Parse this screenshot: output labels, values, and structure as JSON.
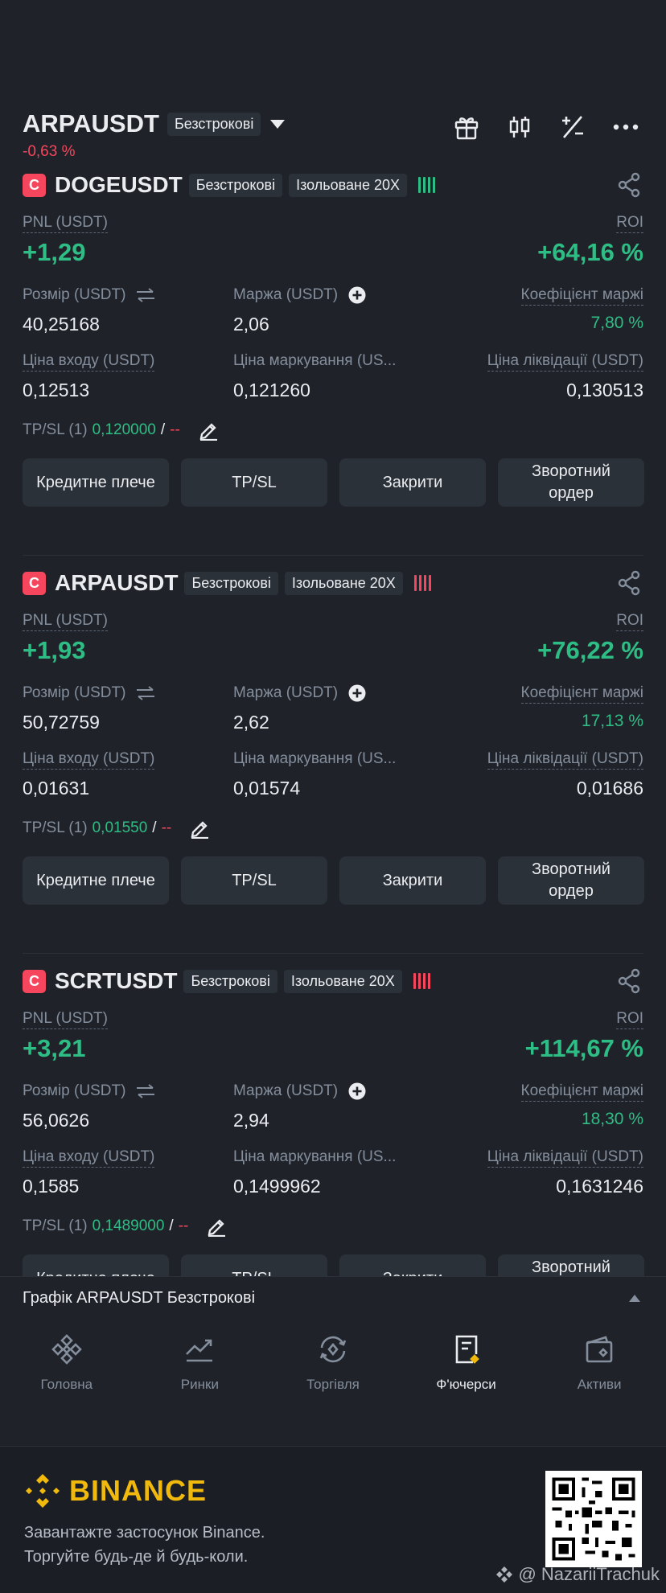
{
  "header": {
    "symbol": "ARPAUSDT",
    "type_label": "Безстрокові",
    "change": "-0,63 %",
    "icons": [
      "gift-icon",
      "candlestick-icon",
      "plus-minus-icon",
      "more-icon"
    ]
  },
  "labels": {
    "pnl": "PNL (USDT)",
    "roi": "ROI",
    "size": "Розмір (USDT)",
    "margin": "Маржа (USDT)",
    "margin_ratio": "Коефіцієнт маржі",
    "entry": "Ціна входу (USDT)",
    "mark": "Ціна маркування (US...",
    "liq": "Ціна ліквідації (USDT)",
    "tpsl_prefix": "TP/SL (1)",
    "tpsl_sep": "/"
  },
  "buttons": {
    "leverage": "Кредитне плече",
    "tpsl": "TP/SL",
    "close": "Закрити",
    "reverse": "Зворотний ордер"
  },
  "positions": [
    {
      "badge": "C",
      "symbol": "DOGEUSDT",
      "type": "Безстрокові",
      "margin_mode": "Ізольоване 20X",
      "risk_color": "#2ebd85",
      "pnl": "+1,29",
      "roi": "+64,16 %",
      "size": "40,25168",
      "margin": "2,06",
      "margin_ratio": "7,80 %",
      "entry": "0,12513",
      "mark": "0,121260",
      "liq": "0,130513",
      "tp": "0,120000",
      "sl": "--"
    },
    {
      "badge": "C",
      "symbol": "ARPAUSDT",
      "type": "Безстрокові",
      "margin_mode": "Ізольоване 20X",
      "risk_color": "#f6465d",
      "pnl": "+1,93",
      "roi": "+76,22 %",
      "size": "50,72759",
      "margin": "2,62",
      "margin_ratio": "17,13 %",
      "entry": "0,01631",
      "mark": "0,01574",
      "liq": "0,01686",
      "tp": "0,01550",
      "sl": "--"
    },
    {
      "badge": "C",
      "symbol": "SCRTUSDT",
      "type": "Безстрокові",
      "margin_mode": "Ізольоване 20X",
      "risk_color": "#f6465d",
      "pnl": "+3,21",
      "roi": "+114,67 %",
      "size": "56,0626",
      "margin": "2,94",
      "margin_ratio": "18,30 %",
      "entry": "0,1585",
      "mark": "0,1499962",
      "liq": "0,1631246",
      "tp": "0,1489000",
      "sl": "--"
    }
  ],
  "chart_bar": {
    "title": "Графік ARPAUSDT Безстрокові"
  },
  "nav": [
    {
      "label": "Головна",
      "icon": "home-icon"
    },
    {
      "label": "Ринки",
      "icon": "markets-icon"
    },
    {
      "label": "Торгівля",
      "icon": "trade-icon"
    },
    {
      "label": "Ф'ючерси",
      "icon": "futures-icon",
      "active": true
    },
    {
      "label": "Активи",
      "icon": "wallet-icon"
    }
  ],
  "footer": {
    "brand": "BINANCE",
    "line1": "Завантажте застосунок Binance.",
    "line2": "Торгуйте будь-де й будь-коли.",
    "watermark": "@ NazariiTrachuk"
  },
  "colors": {
    "up": "#2ebd85",
    "down": "#f6465d",
    "brand": "#f0b90b",
    "bg": "#1f2329",
    "panel": "#2b3139"
  }
}
